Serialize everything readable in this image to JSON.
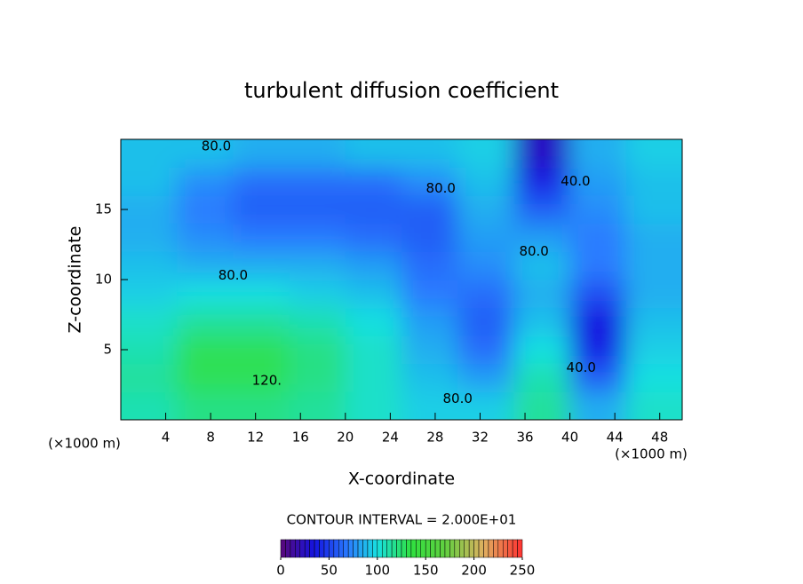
{
  "chart_data": {
    "type": "contour",
    "title": "turbulent diffusion coefficient",
    "x_label": "X-coordinate",
    "y_label": "Z-coordinate",
    "x_unit_left": "(×1000 m)",
    "x_unit_right": "(×1000 m)",
    "xlim": [
      0,
      50
    ],
    "ylim": [
      0,
      20
    ],
    "xticks": [
      4,
      8,
      12,
      16,
      20,
      24,
      28,
      32,
      36,
      40,
      44,
      48
    ],
    "yticks": [
      5,
      10,
      15
    ],
    "x": [
      2.5,
      7.5,
      12.5,
      17.5,
      22.5,
      27.5,
      32.5,
      37.5,
      42.5,
      47.5
    ],
    "y": [
      1,
      3,
      5,
      7,
      9,
      11,
      13,
      15,
      17,
      19
    ],
    "z": [
      [
        110,
        120,
        120,
        115,
        105,
        95,
        95,
        115,
        85,
        105
      ],
      [
        115,
        130,
        130,
        120,
        105,
        90,
        80,
        110,
        60,
        100
      ],
      [
        110,
        130,
        130,
        120,
        105,
        85,
        65,
        100,
        40,
        95
      ],
      [
        105,
        115,
        115,
        110,
        100,
        80,
        60,
        90,
        35,
        90
      ],
      [
        95,
        100,
        100,
        95,
        90,
        70,
        65,
        85,
        55,
        85
      ],
      [
        90,
        85,
        85,
        85,
        80,
        65,
        75,
        90,
        70,
        85
      ],
      [
        85,
        75,
        70,
        70,
        65,
        60,
        80,
        80,
        70,
        85
      ],
      [
        85,
        70,
        60,
        60,
        60,
        60,
        85,
        60,
        75,
        90
      ],
      [
        90,
        75,
        65,
        65,
        65,
        75,
        90,
        40,
        80,
        90
      ],
      [
        90,
        90,
        85,
        85,
        90,
        90,
        95,
        25,
        85,
        95
      ]
    ],
    "contour_labels": [
      {
        "value": 80,
        "label": "80.0",
        "x": 8.5,
        "y": 19.5
      },
      {
        "value": 80,
        "label": "80.0",
        "x": 28.5,
        "y": 16.5
      },
      {
        "value": 40,
        "label": "40.0",
        "x": 40.5,
        "y": 17
      },
      {
        "value": 80,
        "label": "80.0",
        "x": 36.8,
        "y": 12
      },
      {
        "value": 80,
        "label": "80.0",
        "x": 10,
        "y": 10.3
      },
      {
        "value": 120,
        "label": "120.",
        "x": 13,
        "y": 2.8
      },
      {
        "value": 80,
        "label": "80.0",
        "x": 30,
        "y": 1.5
      },
      {
        "value": 40,
        "label": "40.0",
        "x": 41,
        "y": 3.7
      }
    ],
    "contour_interval": "CONTOUR INTERVAL = 2.000E+01",
    "colorbar": {
      "lim": [
        0,
        250
      ],
      "ticks": [
        0,
        50,
        100,
        150,
        200,
        250
      ]
    },
    "colormap": [
      {
        "value": 0,
        "color": "#5a087a"
      },
      {
        "value": 35,
        "color": "#1414e0"
      },
      {
        "value": 70,
        "color": "#2a7cff"
      },
      {
        "value": 100,
        "color": "#18e0e0"
      },
      {
        "value": 135,
        "color": "#30e040"
      },
      {
        "value": 170,
        "color": "#60d040"
      },
      {
        "value": 210,
        "color": "#e0b060"
      },
      {
        "value": 250,
        "color": "#ff3030"
      }
    ]
  }
}
